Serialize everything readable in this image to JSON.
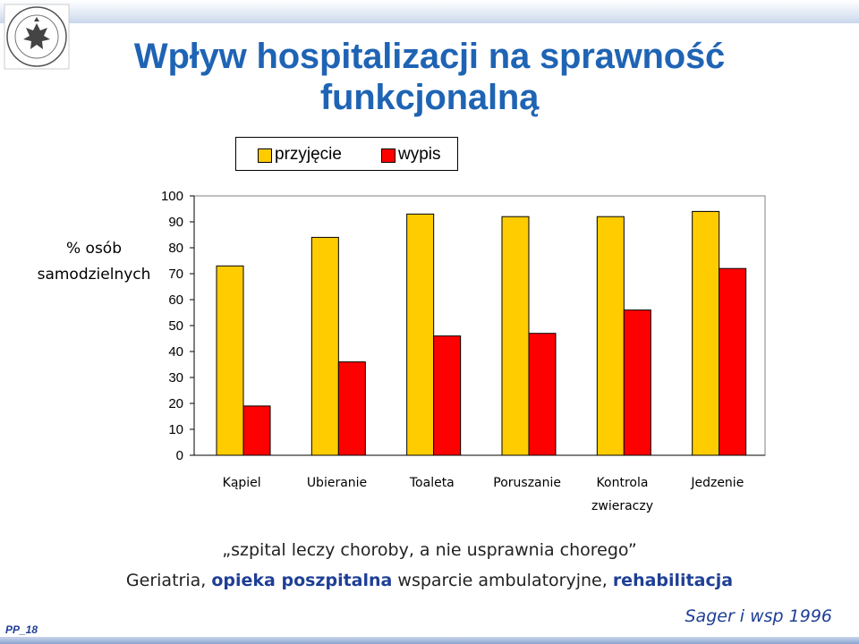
{
  "slide": {
    "title": "Wpływ hospitalizacji na sprawność funkcjonalną",
    "id_label": "PP_18"
  },
  "logo": {
    "icon": "university-seal-icon",
    "text": "UNIVERSITAS MEDICA VARSOVIENSIS · SALUTI PUBLICAE"
  },
  "captions": {
    "line1": "„szpital leczy choroby,  a nie usprawnia chorego”",
    "line2_part1": "Geriatria, ",
    "line2_part2": "opieka poszpitalna",
    "line2_part3": " wsparcie ambulatoryjne, ",
    "line2_part4": "rehabilitacja",
    "citation": "Sager i wsp 1996"
  },
  "chart_data": {
    "type": "bar",
    "title": "",
    "ylabel": "% osób\nsamodzielnych",
    "xlabel": "",
    "ylim": [
      0,
      100
    ],
    "yticks": [
      0,
      10,
      20,
      30,
      40,
      50,
      60,
      70,
      80,
      90,
      100
    ],
    "grid": false,
    "legend_position": "top",
    "categories": [
      "Kąpiel",
      "Ubieranie",
      "Toaleta",
      "Poruszanie",
      "Kontrola\nzwieraczy",
      "Jedzenie"
    ],
    "series": [
      {
        "name": "przyjęcie",
        "color": "#ffcc00",
        "values": [
          73,
          84,
          93,
          92,
          92,
          94
        ]
      },
      {
        "name": "wypis",
        "color": "#ff0000",
        "values": [
          19,
          36,
          46,
          47,
          56,
          72
        ]
      }
    ]
  }
}
